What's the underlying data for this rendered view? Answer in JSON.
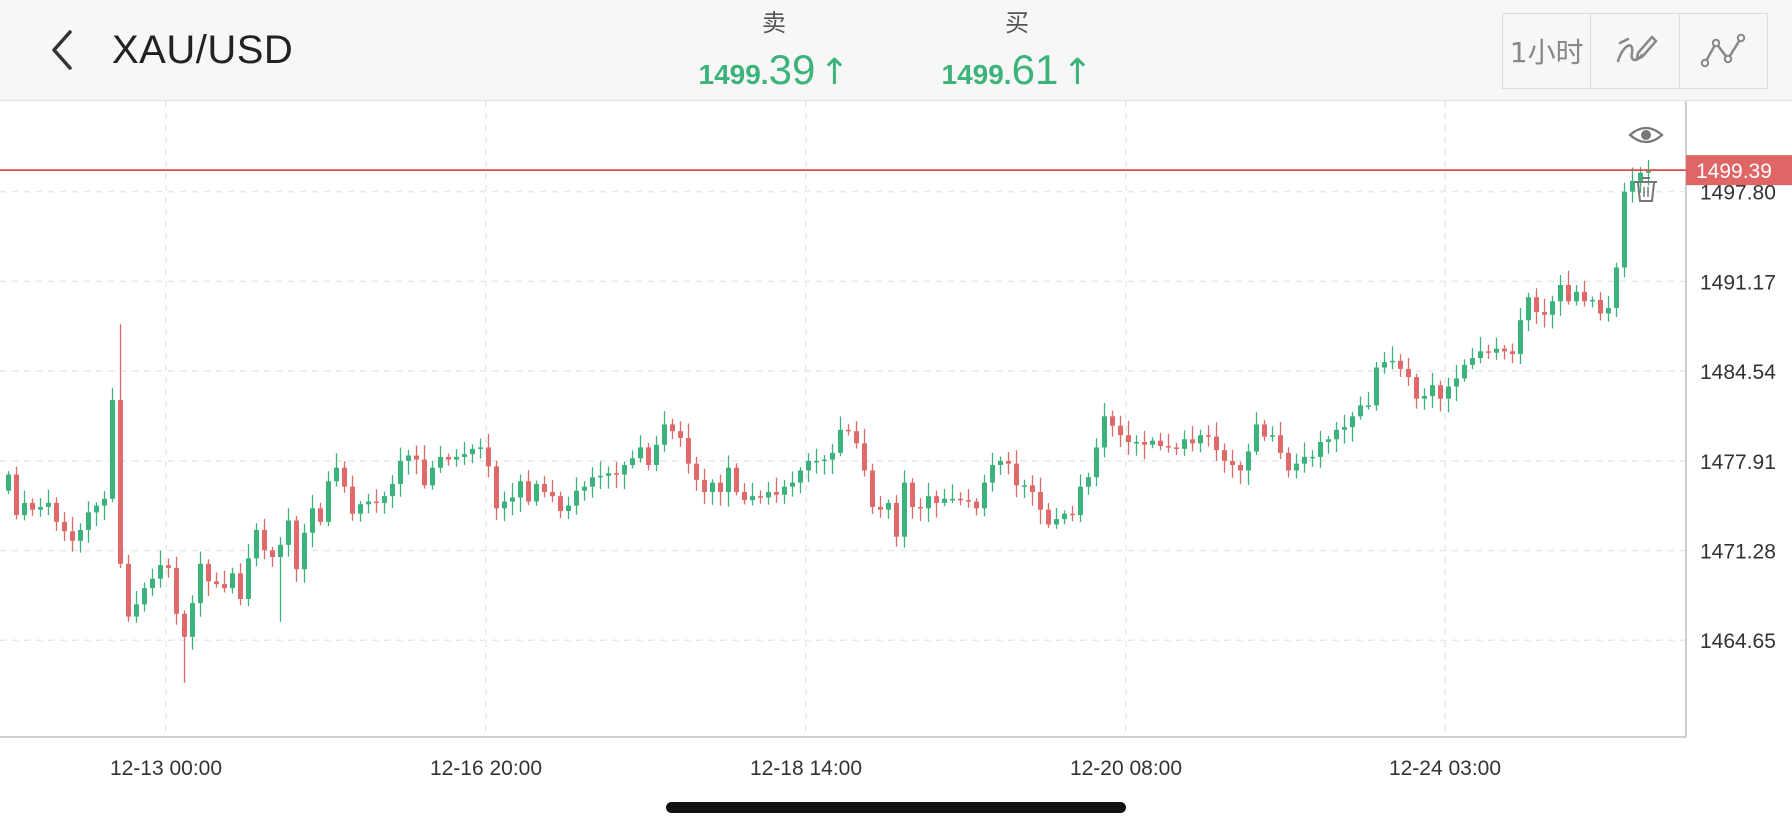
{
  "header": {
    "symbol": "XAU/USD",
    "sell": {
      "label": "卖",
      "price_main": "1499.",
      "price_tail": "39",
      "arrow": "↑"
    },
    "buy": {
      "label": "买",
      "price_main": "1499.",
      "price_tail": "61",
      "arrow": "↑"
    },
    "toolbar": {
      "interval": "1小时",
      "draw_icon": "pen-draw-icon",
      "indicator_icon": "line-chart-icon"
    },
    "back_icon": "chevron-left-icon"
  },
  "colors": {
    "up": "#3bb37a",
    "down": "#e06a6a",
    "price_line": "#e24a4a",
    "grid": "#e8e8e8",
    "axis_text": "#333333"
  },
  "chart_data": {
    "type": "candlestick",
    "symbol": "XAU/USD",
    "interval": "1小时",
    "y_tick_labels": [
      "1497.80",
      "1491.17",
      "1484.54",
      "1477.91",
      "1471.28",
      "1464.65"
    ],
    "y_ticks": [
      1497.8,
      1491.17,
      1484.54,
      1477.91,
      1471.28,
      1464.65
    ],
    "ylim": [
      1457.5,
      1504.5
    ],
    "x_tick_labels": [
      "12-13 00:00",
      "12-16 20:00",
      "12-18 14:00",
      "12-20 08:00",
      "12-24 03:00"
    ],
    "current_price": 1499.39,
    "current_price_label": "1499.39",
    "line_icons": [
      "eye-icon",
      "trash-icon"
    ],
    "grid": "dashed",
    "closes": [
      1476.9,
      1473.9,
      1474.8,
      1474.3,
      1474.5,
      1474.8,
      1473.4,
      1472.7,
      1472.0,
      1472.8,
      1474.1,
      1474.6,
      1475.1,
      1482.4,
      1470.3,
      1466.4,
      1467.3,
      1468.5,
      1469.2,
      1470.2,
      1470.0,
      1466.6,
      1464.9,
      1467.4,
      1470.3,
      1469.0,
      1468.8,
      1468.5,
      1469.6,
      1467.7,
      1470.7,
      1472.8,
      1471.3,
      1470.8,
      1471.7,
      1473.5,
      1469.9,
      1472.6,
      1474.4,
      1473.4,
      1476.4,
      1477.4,
      1476.0,
      1474.0,
      1474.7,
      1474.9,
      1474.8,
      1475.3,
      1476.2,
      1477.9,
      1478.3,
      1478.0,
      1476.1,
      1477.4,
      1478.2,
      1478.0,
      1478.2,
      1478.4,
      1478.8,
      1478.9,
      1477.5,
      1474.4,
      1474.9,
      1475.2,
      1476.4,
      1474.9,
      1476.2,
      1475.6,
      1475.3,
      1474.2,
      1474.6,
      1475.7,
      1476.0,
      1476.7,
      1476.8,
      1477.0,
      1476.9,
      1477.6,
      1478.1,
      1478.9,
      1477.6,
      1479.1,
      1480.6,
      1480.1,
      1479.6,
      1477.7,
      1476.5,
      1475.6,
      1476.3,
      1475.6,
      1477.4,
      1475.6,
      1475.0,
      1475.3,
      1475.2,
      1475.6,
      1475.4,
      1476.0,
      1476.3,
      1477.2,
      1477.9,
      1477.9,
      1478.0,
      1478.5,
      1480.2,
      1480.1,
      1479.2,
      1477.2,
      1474.5,
      1474.3,
      1474.8,
      1472.3,
      1476.3,
      1474.5,
      1474.4,
      1475.3,
      1474.8,
      1475.1,
      1475.1,
      1475.0,
      1474.9,
      1474.4,
      1476.3,
      1477.6,
      1477.9,
      1477.7,
      1476.1,
      1476.1,
      1475.6,
      1474.3,
      1473.2,
      1473.6,
      1474.0,
      1473.9,
      1476.0,
      1476.7,
      1478.9,
      1481.2,
      1480.5,
      1479.8,
      1479.3,
      1479.3,
      1479.1,
      1479.4,
      1479.0,
      1478.9,
      1478.8,
      1479.5,
      1479.2,
      1479.8,
      1479.7,
      1478.7,
      1477.9,
      1477.6,
      1477.2,
      1478.6,
      1480.6,
      1479.7,
      1479.8,
      1478.5,
      1477.2,
      1477.7,
      1478.2,
      1478.2,
      1479.3,
      1479.5,
      1480.2,
      1480.4,
      1481.2,
      1482.0,
      1482.0,
      1484.8,
      1485.2,
      1485.3,
      1484.7,
      1484.1,
      1482.5,
      1482.7,
      1483.5,
      1482.5,
      1483.4,
      1484.0,
      1485.0,
      1485.5,
      1486.0,
      1485.9,
      1486.2,
      1486.0,
      1485.8,
      1488.3,
      1490.0,
      1488.9,
      1488.7,
      1489.7,
      1490.9,
      1489.7,
      1490.4,
      1489.7,
      1489.8,
      1488.8,
      1489.2,
      1492.2,
      1497.8,
      1498.6,
      1499.2,
      1499.4
    ]
  }
}
